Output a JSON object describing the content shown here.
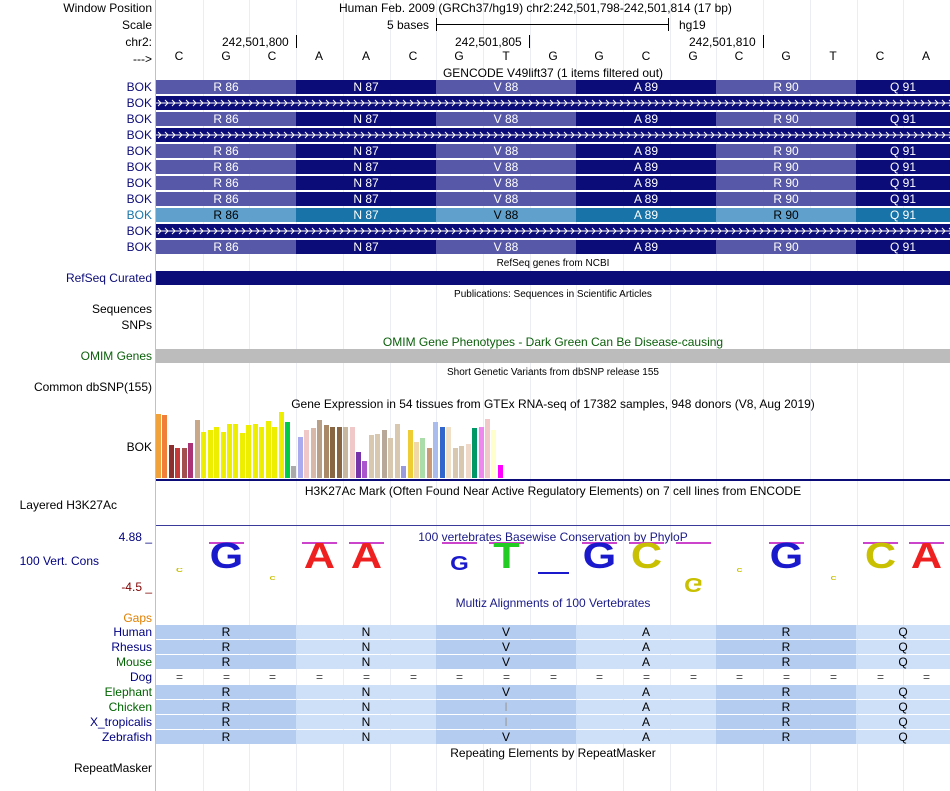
{
  "header": {
    "window_position_label": "Window Position",
    "window_position_value": "Human Feb. 2009 (GRCh37/hg19)   chr2:242,501,798-242,501,814 (17 bp)",
    "scale_label": "Scale",
    "scale_value": "5 bases",
    "scale_assembly": "hg19",
    "chrom_label": "chr2:",
    "ticks": [
      "242,501,800",
      "242,501,805",
      "242,501,810"
    ],
    "strand_label": "--->",
    "bases": [
      "C",
      "G",
      "C",
      "A",
      "A",
      "C",
      "G",
      "T",
      "G",
      "G",
      "C",
      "G",
      "C",
      "G",
      "T",
      "C",
      "A"
    ]
  },
  "gencode": {
    "title": "GENCODE V49lift37 (1 items filtered out)",
    "rows": [
      {
        "label": "BOK",
        "type": "codons"
      },
      {
        "label": "BOK",
        "type": "intron"
      },
      {
        "label": "BOK",
        "type": "codons"
      },
      {
        "label": "BOK",
        "type": "intron"
      },
      {
        "label": "BOK",
        "type": "codons"
      },
      {
        "label": "BOK",
        "type": "codons"
      },
      {
        "label": "BOK",
        "type": "codons"
      },
      {
        "label": "BOK",
        "type": "codons"
      },
      {
        "label": "BOK",
        "type": "codons-highlight"
      },
      {
        "label": "BOK",
        "type": "intron"
      },
      {
        "label": "BOK",
        "type": "codons"
      }
    ],
    "codons": [
      "R 86",
      "N 87",
      "V 88",
      "A 89",
      "R 90",
      "Q 91"
    ],
    "colors": {
      "light": "#5858a8",
      "dark": "#0c0c78",
      "hl_light": "#5fa0cc",
      "hl_dark": "#1874a8"
    }
  },
  "refseq": {
    "title": "RefSeq genes from NCBI",
    "label": "RefSeq Curated",
    "color": "#0c0c78"
  },
  "publications": {
    "title": "Publications: Sequences in Scientific Articles",
    "label_sequences": "Sequences",
    "label_snps": "SNPs"
  },
  "omim": {
    "title": "OMIM Gene Phenotypes - Dark Green Can Be Disease-causing",
    "label": "OMIM Genes",
    "color": "#0a5f0a"
  },
  "dbsnp": {
    "title": "Short Genetic Variants from dbSNP release 155",
    "label": "Common dbSNP(155)"
  },
  "gtex": {
    "title": "Gene Expression in 54 tissues from GTEx RNA-seq of 17382 samples, 948 donors (V8, Aug 2019)",
    "label": "BOK",
    "bars": [
      {
        "v": 0.97,
        "c": "#f2a23a"
      },
      {
        "v": 0.95,
        "c": "#f07f3a"
      },
      {
        "v": 0.5,
        "c": "#8c2f2f"
      },
      {
        "v": 0.45,
        "c": "#c73a3a"
      },
      {
        "v": 0.45,
        "c": "#a34f4f"
      },
      {
        "v": 0.53,
        "c": "#aa3377"
      },
      {
        "v": 0.88,
        "c": "#c8a888"
      },
      {
        "v": 0.7,
        "c": "#eeee00"
      },
      {
        "v": 0.72,
        "c": "#eeee00"
      },
      {
        "v": 0.78,
        "c": "#eeee00"
      },
      {
        "v": 0.7,
        "c": "#eeee00"
      },
      {
        "v": 0.82,
        "c": "#eeee00"
      },
      {
        "v": 0.82,
        "c": "#eeee00"
      },
      {
        "v": 0.68,
        "c": "#eeee00"
      },
      {
        "v": 0.8,
        "c": "#eeee00"
      },
      {
        "v": 0.82,
        "c": "#eeee00"
      },
      {
        "v": 0.77,
        "c": "#eeee00"
      },
      {
        "v": 0.87,
        "c": "#eeee00"
      },
      {
        "v": 0.77,
        "c": "#eeee00"
      },
      {
        "v": 1.0,
        "c": "#eeee00"
      },
      {
        "v": 0.85,
        "c": "#00cc44"
      },
      {
        "v": 0.18,
        "c": "#aaaaaa"
      },
      {
        "v": 0.62,
        "c": "#aaaaee"
      },
      {
        "v": 0.72,
        "c": "#f0c8c8"
      },
      {
        "v": 0.75,
        "c": "#d8b8a8"
      },
      {
        "v": 0.88,
        "c": "#b8a088"
      },
      {
        "v": 0.8,
        "c": "#a88866"
      },
      {
        "v": 0.78,
        "c": "#886644"
      },
      {
        "v": 0.78,
        "c": "#886644"
      },
      {
        "v": 0.78,
        "c": "#c8b8a0"
      },
      {
        "v": 0.77,
        "c": "#f0c8c8"
      },
      {
        "v": 0.4,
        "c": "#7733aa"
      },
      {
        "v": 0.25,
        "c": "#aa55cc"
      },
      {
        "v": 0.65,
        "c": "#d8c8b0"
      },
      {
        "v": 0.66,
        "c": "#d8c8b0"
      },
      {
        "v": 0.73,
        "c": "#b8a898"
      },
      {
        "v": 0.6,
        "c": "#d8c8b0"
      },
      {
        "v": 0.82,
        "c": "#d8c8b0"
      },
      {
        "v": 0.18,
        "c": "#9999dd"
      },
      {
        "v": 0.72,
        "c": "#eecc33"
      },
      {
        "v": 0.55,
        "c": "#f0d8a8"
      },
      {
        "v": 0.6,
        "c": "#aaddaa"
      },
      {
        "v": 0.45,
        "c": "#cc9977"
      },
      {
        "v": 0.85,
        "c": "#aabbee"
      },
      {
        "v": 0.78,
        "c": "#3366cc"
      },
      {
        "v": 0.77,
        "c": "#f0e0c8"
      },
      {
        "v": 0.45,
        "c": "#d8c8b0"
      },
      {
        "v": 0.48,
        "c": "#d8c8b0"
      },
      {
        "v": 0.52,
        "c": "#f0d8c8"
      },
      {
        "v": 0.75,
        "c": "#009966"
      },
      {
        "v": 0.77,
        "c": "#ee88ee"
      },
      {
        "v": 0.9,
        "c": "#f0c8c8"
      },
      {
        "v": 0.72,
        "c": "#ffffcc"
      },
      {
        "v": 0.2,
        "c": "#ff00ff"
      }
    ]
  },
  "h3k27ac": {
    "title": "H3K27Ac Mark (Often Found Near Active Regulatory Elements) on 7 cell lines from ENCODE",
    "label": "Layered H3K27Ac"
  },
  "phylop": {
    "title": "100 vertebrates Basewise Conservation by PhyloP",
    "label": "100 Vert. Cons",
    "max_label": "4.88 _",
    "min_label": "-4.5 _",
    "logo": [
      {
        "t": "C",
        "h": 0.16,
        "c": "#c8c000",
        "dir": "up"
      },
      {
        "t": "G",
        "h": 1.0,
        "c": "#1a1acc",
        "dir": "up"
      },
      {
        "t": "C",
        "h": 0.1,
        "c": "#c8c000",
        "dir": "down"
      },
      {
        "t": "A",
        "h": 1.0,
        "c": "#ee2020",
        "dir": "up"
      },
      {
        "t": "A",
        "h": 1.0,
        "c": "#ee2020",
        "dir": "up"
      },
      {
        "t": "",
        "h": 0,
        "c": "#000",
        "dir": "up"
      },
      {
        "t": "G",
        "h": 0.55,
        "c": "#1a1acc",
        "dir": "up"
      },
      {
        "t": "T",
        "h": 1.0,
        "c": "#22cc22",
        "dir": "up"
      },
      {
        "t": "",
        "h": 0.05,
        "c": "#1a1acc",
        "dir": "down"
      },
      {
        "t": "G",
        "h": 1.0,
        "c": "#1a1acc",
        "dir": "up"
      },
      {
        "t": "C",
        "h": 1.0,
        "c": "#c8c000",
        "dir": "up"
      },
      {
        "t": "G",
        "h": 0.55,
        "c": "#c8c000",
        "dir": "down"
      },
      {
        "t": "C",
        "h": 0.14,
        "c": "#c8c000",
        "dir": "up"
      },
      {
        "t": "G",
        "h": 1.0,
        "c": "#1a1acc",
        "dir": "up"
      },
      {
        "t": "C",
        "h": 0.1,
        "c": "#c8c000",
        "dir": "down"
      },
      {
        "t": "C",
        "h": 1.0,
        "c": "#c8c000",
        "dir": "up"
      },
      {
        "t": "A",
        "h": 1.0,
        "c": "#ee2020",
        "dir": "up"
      }
    ]
  },
  "multiz": {
    "title": "Multiz Alignments of 100 Vertebrates",
    "gaps_label": "Gaps",
    "species": [
      {
        "name": "Human",
        "color": "#000080",
        "aa": [
          "R",
          "N",
          "V",
          "A",
          "R",
          "Q"
        ]
      },
      {
        "name": "Rhesus",
        "color": "#000080",
        "aa": [
          "R",
          "N",
          "V",
          "A",
          "R",
          "Q"
        ]
      },
      {
        "name": "Mouse",
        "color": "#006400",
        "aa": [
          "R",
          "N",
          "V",
          "A",
          "R",
          "Q"
        ]
      },
      {
        "name": "Dog",
        "color": "#000080",
        "aa": [
          "=",
          "=",
          "=",
          "=",
          "=",
          "=",
          "=",
          "=",
          "=",
          "=",
          "=",
          "=",
          "=",
          "=",
          "=",
          "=",
          "="
        ]
      },
      {
        "name": "Elephant",
        "color": "#006400",
        "aa": [
          "R",
          "N",
          "V",
          "A",
          "R",
          "Q"
        ]
      },
      {
        "name": "Chicken",
        "color": "#006400",
        "aa": [
          "R",
          "N",
          "I",
          "A",
          "R",
          "Q"
        ]
      },
      {
        "name": "X_tropicalis",
        "color": "#000080",
        "aa": [
          "R",
          "N",
          "I",
          "A",
          "R",
          "Q"
        ]
      },
      {
        "name": "Zebrafish",
        "color": "#000080",
        "aa": [
          "R",
          "N",
          "V",
          "A",
          "R",
          "Q"
        ]
      }
    ]
  },
  "repeatmasker": {
    "title": "Repeating Elements by RepeatMasker",
    "label": "RepeatMasker"
  }
}
